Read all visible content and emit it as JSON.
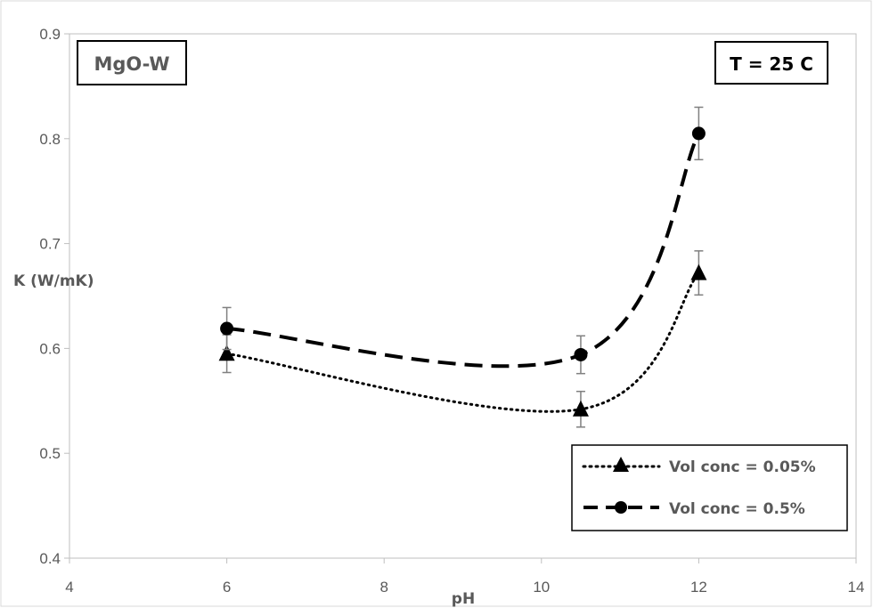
{
  "chart_data": {
    "type": "line",
    "xlabel": "pH",
    "ylabel": "K (W/mK)",
    "xlim": [
      4,
      14
    ],
    "ylim": [
      0.4,
      0.9
    ],
    "x_ticks": [
      4,
      6,
      8,
      10,
      12,
      14
    ],
    "y_ticks": [
      "0.4",
      "0.5",
      "0.6",
      "0.7",
      "0.8",
      "0.9"
    ],
    "grid": false,
    "legend_position": "bottom-right",
    "annotations": [
      {
        "text": "MgO-W",
        "position": "top-left"
      },
      {
        "text": "T = 25 C",
        "position": "top-right"
      }
    ],
    "series": [
      {
        "name": "Vol conc = 0.05%",
        "marker": "triangle",
        "line_style": "dotted",
        "x": [
          6,
          10.5,
          12
        ],
        "y": [
          0.595,
          0.542,
          0.672
        ],
        "error": [
          0.018,
          0.017,
          0.021
        ]
      },
      {
        "name": "Vol conc = 0.5%",
        "marker": "circle",
        "line_style": "dashed",
        "x": [
          6,
          10.5,
          12
        ],
        "y": [
          0.619,
          0.594,
          0.805
        ],
        "error": [
          0.02,
          0.018,
          0.025
        ]
      }
    ]
  }
}
